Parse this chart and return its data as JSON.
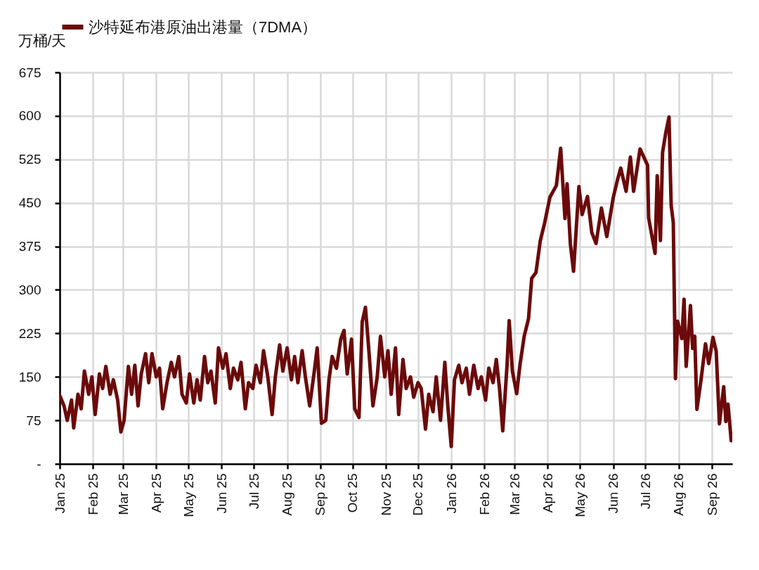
{
  "chart_data": {
    "type": "line",
    "ylabel": "万桶/天",
    "legend": "top",
    "grid": true,
    "line_style": "solid",
    "xlim": [
      "2025-01-01",
      "2026-09-20"
    ],
    "ylim": [
      0,
      675
    ],
    "xticks": [
      {
        "value": "2025-01-01",
        "label": "Jan 25"
      },
      {
        "value": "2025-02-01",
        "label": "Feb 25"
      },
      {
        "value": "2025-03-01",
        "label": "Mar 25"
      },
      {
        "value": "2025-04-01",
        "label": "Apr 25"
      },
      {
        "value": "2025-05-01",
        "label": "May 25"
      },
      {
        "value": "2025-06-01",
        "label": "Jun 25"
      },
      {
        "value": "2025-07-01",
        "label": "Jul 25"
      },
      {
        "value": "2025-08-01",
        "label": "Aug 25"
      },
      {
        "value": "2025-09-01",
        "label": "Sep 25"
      },
      {
        "value": "2025-10-01",
        "label": "Oct 25"
      },
      {
        "value": "2025-11-01",
        "label": "Nov 25"
      },
      {
        "value": "2025-12-01",
        "label": "Dec 25"
      },
      {
        "value": "2026-01-01",
        "label": "Jan 26"
      },
      {
        "value": "2026-02-01",
        "label": "Feb 26"
      },
      {
        "value": "2026-03-01",
        "label": "Mar 26"
      },
      {
        "value": "2026-04-01",
        "label": "Apr 26"
      },
      {
        "value": "2026-05-01",
        "label": "May 26"
      },
      {
        "value": "2026-06-01",
        "label": "Jun 26"
      },
      {
        "value": "2026-07-01",
        "label": "Jul 26"
      },
      {
        "value": "2026-08-01",
        "label": "Aug 26"
      },
      {
        "value": "2026-09-01",
        "label": "Sep 26"
      }
    ],
    "yticks": [
      {
        "value": 0,
        "label": "-"
      },
      75,
      150,
      225,
      300,
      375,
      450,
      525,
      600,
      675
    ],
    "series": [
      {
        "name": "沙特延布港原油出港量（7DMA）",
        "color": "#6b0a0a",
        "x": [
          "2025-01-01",
          "2025-01-05",
          "2025-01-08",
          "2025-01-12",
          "2025-01-14",
          "2025-01-18",
          "2025-01-21",
          "2025-01-24",
          "2025-01-28",
          "2025-01-31",
          "2025-02-03",
          "2025-02-07",
          "2025-02-10",
          "2025-02-13",
          "2025-02-17",
          "2025-02-20",
          "2025-02-24",
          "2025-02-27",
          "2025-03-02",
          "2025-03-06",
          "2025-03-09",
          "2025-03-12",
          "2025-03-15",
          "2025-03-18",
          "2025-03-22",
          "2025-03-25",
          "2025-03-28",
          "2025-04-01",
          "2025-04-04",
          "2025-04-07",
          "2025-04-11",
          "2025-04-15",
          "2025-04-18",
          "2025-04-22",
          "2025-04-25",
          "2025-04-29",
          "2025-05-02",
          "2025-05-06",
          "2025-05-09",
          "2025-05-12",
          "2025-05-16",
          "2025-05-19",
          "2025-05-22",
          "2025-05-26",
          "2025-05-29",
          "2025-06-02",
          "2025-06-05",
          "2025-06-09",
          "2025-06-12",
          "2025-06-16",
          "2025-06-19",
          "2025-06-23",
          "2025-06-26",
          "2025-06-30",
          "2025-07-03",
          "2025-07-07",
          "2025-07-10",
          "2025-07-14",
          "2025-07-18",
          "2025-07-21",
          "2025-07-25",
          "2025-07-28",
          "2025-08-01",
          "2025-08-05",
          "2025-08-08",
          "2025-08-11",
          "2025-08-15",
          "2025-08-18",
          "2025-08-22",
          "2025-08-26",
          "2025-08-29",
          "2025-09-02",
          "2025-09-06",
          "2025-09-09",
          "2025-09-12",
          "2025-09-16",
          "2025-09-20",
          "2025-09-23",
          "2025-09-26",
          "2025-09-30",
          "2025-10-03",
          "2025-10-07",
          "2025-10-10",
          "2025-10-13",
          "2025-10-16",
          "2025-10-20",
          "2025-10-24",
          "2025-10-27",
          "2025-10-31",
          "2025-11-03",
          "2025-11-06",
          "2025-11-10",
          "2025-11-13",
          "2025-11-17",
          "2025-11-20",
          "2025-11-24",
          "2025-11-27",
          "2025-12-01",
          "2025-12-04",
          "2025-12-08",
          "2025-12-11",
          "2025-12-15",
          "2025-12-18",
          "2025-12-22",
          "2025-12-26",
          "2025-12-29",
          "2026-01-01",
          "2026-01-04",
          "2026-01-08",
          "2026-01-11",
          "2026-01-15",
          "2026-01-18",
          "2026-01-22",
          "2026-01-26",
          "2026-01-29",
          "2026-02-02",
          "2026-02-05",
          "2026-02-09",
          "2026-02-12",
          "2026-02-15",
          "2026-02-18",
          "2026-02-22",
          "2026-02-24",
          "2026-02-27",
          "2026-03-03",
          "2026-03-06",
          "2026-03-10",
          "2026-03-14",
          "2026-03-17",
          "2026-03-21",
          "2026-03-25",
          "2026-03-29",
          "2026-04-03",
          "2026-04-09",
          "2026-04-13",
          "2026-04-17",
          "2026-04-19",
          "2026-04-22",
          "2026-04-25",
          "2026-04-30",
          "2026-05-03",
          "2026-05-08",
          "2026-05-12",
          "2026-05-16",
          "2026-05-21",
          "2026-05-26",
          "2026-06-01",
          "2026-06-05",
          "2026-06-08",
          "2026-06-13",
          "2026-06-17",
          "2026-06-20",
          "2026-06-26",
          "2026-07-03",
          "2026-07-04",
          "2026-07-10",
          "2026-07-12",
          "2026-07-15",
          "2026-07-17",
          "2026-07-20",
          "2026-07-23",
          "2026-07-25",
          "2026-07-27",
          "2026-07-29",
          "2026-07-31",
          "2026-08-04",
          "2026-08-06",
          "2026-08-08",
          "2026-08-12",
          "2026-08-14",
          "2026-08-16",
          "2026-08-18",
          "2026-08-22",
          "2026-08-26",
          "2026-08-29",
          "2026-09-02",
          "2026-09-05",
          "2026-09-08",
          "2026-09-12",
          "2026-09-14",
          "2026-09-16",
          "2026-09-19"
        ],
        "values": [
          118,
          100,
          75,
          110,
          62,
          120,
          95,
          160,
          120,
          150,
          85,
          155,
          130,
          168,
          120,
          145,
          110,
          55,
          75,
          168,
          120,
          170,
          100,
          155,
          190,
          140,
          190,
          150,
          165,
          95,
          140,
          175,
          150,
          185,
          120,
          105,
          155,
          105,
          145,
          110,
          185,
          140,
          160,
          105,
          200,
          165,
          190,
          130,
          165,
          145,
          175,
          95,
          140,
          130,
          170,
          140,
          195,
          150,
          85,
          150,
          205,
          160,
          200,
          145,
          185,
          140,
          195,
          150,
          100,
          155,
          200,
          70,
          75,
          145,
          185,
          165,
          215,
          230,
          155,
          215,
          95,
          80,
          245,
          270,
          200,
          100,
          150,
          220,
          150,
          195,
          120,
          200,
          85,
          180,
          130,
          150,
          115,
          140,
          130,
          60,
          120,
          90,
          150,
          75,
          175,
          95,
          30,
          145,
          170,
          140,
          165,
          120,
          170,
          130,
          150,
          110,
          165,
          140,
          180,
          130,
          57,
          170,
          247,
          160,
          121,
          170,
          220,
          250,
          320,
          330,
          385,
          415,
          460,
          480,
          544,
          423,
          483,
          380,
          332,
          478,
          430,
          461,
          399,
          380,
          441,
          392,
          459,
          490,
          510,
          470,
          529,
          470,
          543,
          515,
          424,
          363,
          497,
          385,
          537,
          571,
          598,
          446,
          416,
          147,
          246,
          216,
          284,
          168,
          273,
          199,
          220,
          94,
          147,
          207,
          173,
          218,
          194,
          69,
          133,
          73,
          103,
          40
        ]
      }
    ]
  }
}
